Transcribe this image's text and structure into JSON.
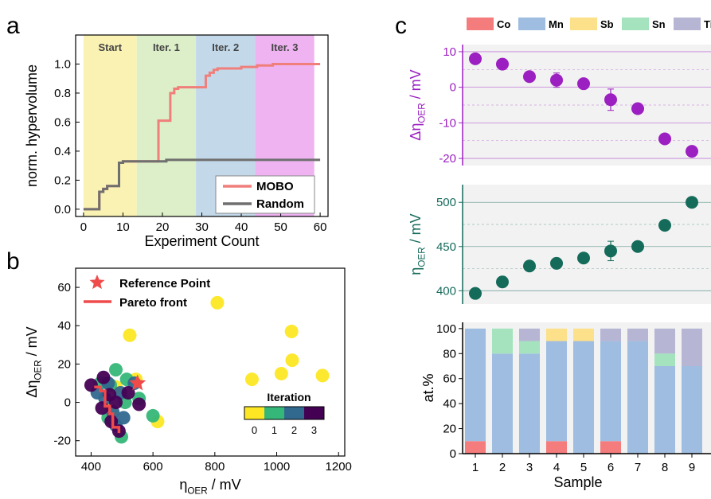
{
  "panel_labels": {
    "a": "a",
    "b": "b",
    "c": "c"
  },
  "chart_data": [
    {
      "id": "a",
      "type": "line",
      "xlabel": "Experiment Count",
      "ylabel": "norm. hypervolume",
      "xlim": [
        -2,
        62
      ],
      "ylim": [
        -0.05,
        1.2
      ],
      "xticks": [
        "0",
        "10",
        "20",
        "30",
        "40",
        "50",
        "60"
      ],
      "yticks": [
        "0.0",
        "0.2",
        "0.4",
        "0.6",
        "0.8",
        "1.0"
      ],
      "regions": [
        {
          "label": "Start",
          "from": 0,
          "to": 13.5,
          "color": "#f9f2b3"
        },
        {
          "label": "Iter. 1",
          "from": 13.5,
          "to": 28.5,
          "color": "#dcefc8"
        },
        {
          "label": "Iter. 2",
          "from": 28.5,
          "to": 43.5,
          "color": "#c3d9ea"
        },
        {
          "label": "Iter. 3",
          "from": 43.5,
          "to": 58.5,
          "color": "#efb3f2"
        }
      ],
      "series": [
        {
          "name": "MOBO",
          "color": "#f07f7b",
          "x": [
            0,
            2,
            4,
            5,
            6,
            7,
            8,
            9,
            10,
            11,
            12,
            13,
            14,
            15,
            16,
            17,
            18,
            19,
            20,
            21,
            22,
            23,
            24,
            25,
            26,
            27,
            28,
            29,
            30,
            31,
            32,
            33,
            34,
            35,
            36,
            37,
            38,
            39,
            40,
            41,
            42,
            43,
            44,
            45,
            46,
            47,
            48,
            49,
            50,
            51,
            52,
            53,
            54,
            55,
            56,
            57,
            58,
            59,
            60
          ],
          "y": [
            0,
            0,
            0.12,
            0.14,
            0.16,
            0.16,
            0.16,
            0.32,
            0.33,
            0.33,
            0.33,
            0.33,
            0.33,
            0.33,
            0.33,
            0.33,
            0.33,
            0.61,
            0.61,
            0.61,
            0.8,
            0.83,
            0.84,
            0.84,
            0.84,
            0.84,
            0.84,
            0.84,
            0.84,
            0.92,
            0.94,
            0.96,
            0.97,
            0.97,
            0.97,
            0.97,
            0.97,
            0.97,
            0.98,
            0.98,
            0.98,
            0.98,
            0.99,
            0.99,
            0.99,
            0.99,
            1.0,
            1.0,
            1.0,
            1.0,
            1.0,
            1.0,
            1.0,
            1.0,
            1.0,
            1.0,
            1.0,
            1.0,
            1.0
          ]
        },
        {
          "name": "Random",
          "color": "#6f6f6f",
          "x": [
            0,
            2,
            4,
            5,
            6,
            7,
            8,
            9,
            10,
            20,
            21,
            60
          ],
          "y": [
            0,
            0,
            0.12,
            0.14,
            0.16,
            0.16,
            0.16,
            0.32,
            0.33,
            0.33,
            0.34,
            0.34
          ]
        }
      ],
      "legend": "bottom-right"
    },
    {
      "id": "b",
      "type": "scatter",
      "xlabel": "η",
      "xlabel_sub": "OER",
      "xlabel_unit": " / mV",
      "ylabel": "Δη",
      "ylabel_sub": "OER",
      "ylabel_unit": " / mV",
      "xlim": [
        350,
        1220
      ],
      "ylim": [
        -28,
        70
      ],
      "xticks": [
        "400",
        "600",
        "800",
        "1000",
        "1200"
      ],
      "yticks": [
        "-20",
        "0",
        "20",
        "40",
        "60"
      ],
      "legend_items": [
        "Reference Point",
        "Pareto front"
      ],
      "colorbar_title": "Iteration",
      "colorbar_ticks": [
        "0",
        "1",
        "2",
        "3"
      ],
      "iteration_colors": [
        "#fde725",
        "#35b779",
        "#31688e",
        "#440154"
      ],
      "reference_point": [
        550,
        10
      ],
      "pareto_front": [
        [
          410,
          8
        ],
        [
          430,
          8
        ],
        [
          430,
          6
        ],
        [
          445,
          6
        ],
        [
          445,
          -2
        ],
        [
          460,
          -2
        ],
        [
          460,
          -6
        ],
        [
          470,
          -6
        ],
        [
          470,
          -13
        ],
        [
          490,
          -13
        ],
        [
          490,
          -16
        ]
      ],
      "points": [
        {
          "x": 525,
          "y": 35,
          "it": 0
        },
        {
          "x": 808,
          "y": 52,
          "it": 0
        },
        {
          "x": 920,
          "y": 12,
          "it": 0
        },
        {
          "x": 1015,
          "y": 15,
          "it": 0
        },
        {
          "x": 1048,
          "y": 37,
          "it": 0
        },
        {
          "x": 1050,
          "y": 22,
          "it": 0
        },
        {
          "x": 1148,
          "y": 14,
          "it": 0
        },
        {
          "x": 615,
          "y": -10,
          "it": 0
        },
        {
          "x": 545,
          "y": 12,
          "it": 0
        },
        {
          "x": 465,
          "y": -4,
          "it": 0
        },
        {
          "x": 480,
          "y": 8,
          "it": 0
        },
        {
          "x": 480,
          "y": 17,
          "it": 1
        },
        {
          "x": 515,
          "y": 12,
          "it": 1
        },
        {
          "x": 555,
          "y": 2,
          "it": 1
        },
        {
          "x": 600,
          "y": -7,
          "it": 1
        },
        {
          "x": 498,
          "y": -18,
          "it": 1
        },
        {
          "x": 455,
          "y": -8,
          "it": 1
        },
        {
          "x": 430,
          "y": 10,
          "it": 1
        },
        {
          "x": 462,
          "y": 9,
          "it": 1
        },
        {
          "x": 510,
          "y": 0,
          "it": 1
        },
        {
          "x": 420,
          "y": 5,
          "it": 2
        },
        {
          "x": 470,
          "y": -5,
          "it": 2
        },
        {
          "x": 495,
          "y": 5,
          "it": 2
        },
        {
          "x": 445,
          "y": 2,
          "it": 2
        },
        {
          "x": 480,
          "y": -12,
          "it": 2
        },
        {
          "x": 540,
          "y": 10,
          "it": 2
        },
        {
          "x": 455,
          "y": 10,
          "it": 2
        },
        {
          "x": 505,
          "y": -8,
          "it": 2
        },
        {
          "x": 400,
          "y": 9,
          "it": 3
        },
        {
          "x": 440,
          "y": 13,
          "it": 3
        },
        {
          "x": 460,
          "y": 4,
          "it": 3
        },
        {
          "x": 480,
          "y": 0,
          "it": 3
        },
        {
          "x": 520,
          "y": 5,
          "it": 3
        },
        {
          "x": 465,
          "y": -10,
          "it": 3
        },
        {
          "x": 435,
          "y": -3,
          "it": 3
        },
        {
          "x": 555,
          "y": -1,
          "it": 3
        },
        {
          "x": 490,
          "y": -15,
          "it": 3
        }
      ]
    },
    {
      "id": "c",
      "type": "bar",
      "legend_items": [
        {
          "label": "Co",
          "color": "#f47c7c"
        },
        {
          "label": "Mn",
          "color": "#9fbde0"
        },
        {
          "label": "Sb",
          "color": "#fde08a"
        },
        {
          "label": "Sn",
          "color": "#a4e3bd"
        },
        {
          "label": "Ti",
          "color": "#b6b6d4"
        }
      ],
      "xlabel": "Sample",
      "categories": [
        "1",
        "2",
        "3",
        "4",
        "5",
        "6",
        "7",
        "8",
        "9"
      ],
      "subplots": [
        {
          "name": "delta",
          "type": "scatter",
          "ylabel": "Δη",
          "ylabel_sub": "OER",
          "ylabel_unit": " / mV",
          "color": "#9b1fc1",
          "ylim": [
            -22,
            12
          ],
          "yticks": [
            "10",
            "0",
            "-10",
            "-20"
          ],
          "values": [
            8,
            6.5,
            3,
            2,
            1,
            -3.5,
            -6,
            -14.5,
            -18
          ],
          "errors": [
            0,
            0,
            0,
            2,
            0,
            3,
            0,
            0,
            0
          ]
        },
        {
          "name": "overpotential",
          "type": "scatter",
          "ylabel": "η",
          "ylabel_sub": "OER",
          "ylabel_unit": " / mV",
          "color": "#156b5a",
          "ylim": [
            385,
            520
          ],
          "yticks": [
            "500",
            "450",
            "400"
          ],
          "values": [
            397,
            410,
            428,
            431,
            437,
            445,
            450,
            474,
            500
          ],
          "errors": [
            0,
            6,
            0,
            6,
            0,
            11,
            0,
            0,
            0
          ]
        },
        {
          "name": "composition",
          "type": "bar",
          "ylabel": "at.%",
          "ylim": [
            0,
            105
          ],
          "yticks": [
            "100",
            "80",
            "60",
            "40",
            "20",
            "0"
          ],
          "series": [
            {
              "name": "Co",
              "values": [
                10,
                0,
                0,
                10,
                0,
                10,
                0,
                0,
                0
              ]
            },
            {
              "name": "Mn",
              "values": [
                90,
                80,
                80,
                80,
                90,
                80,
                90,
                70,
                70
              ]
            },
            {
              "name": "Sb",
              "values": [
                0,
                0,
                0,
                10,
                10,
                0,
                0,
                0,
                0
              ]
            },
            {
              "name": "Sn",
              "values": [
                0,
                20,
                10,
                0,
                0,
                0,
                0,
                10,
                0
              ]
            },
            {
              "name": "Ti",
              "values": [
                0,
                0,
                10,
                0,
                0,
                10,
                10,
                20,
                30
              ]
            }
          ]
        }
      ]
    }
  ]
}
